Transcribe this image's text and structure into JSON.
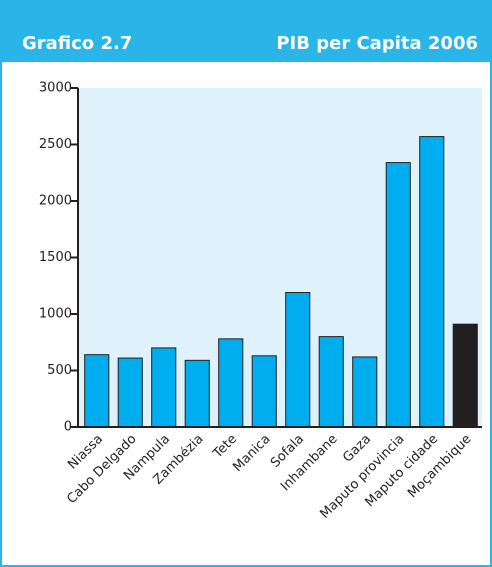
{
  "chart_data": {
    "type": "bar",
    "chart_id": "Grafico 2.7",
    "title": "PIB per Capita 2006",
    "categories": [
      "Niassa",
      "Cabo Delgado",
      "Nampula",
      "Zambézia",
      "Tete",
      "Manica",
      "Sofala",
      "Inhambane",
      "Gaza",
      "Maputo provincia",
      "Maputo cidade",
      "Moçambique"
    ],
    "values": [
      640,
      610,
      700,
      590,
      780,
      630,
      1190,
      800,
      620,
      2340,
      2570,
      910
    ],
    "colors": [
      "#00aeef",
      "#00aeef",
      "#00aeef",
      "#00aeef",
      "#00aeef",
      "#00aeef",
      "#00aeef",
      "#00aeef",
      "#00aeef",
      "#00aeef",
      "#00aeef",
      "#231f20"
    ],
    "ylim": [
      0,
      3000
    ],
    "yticks": [
      0,
      500,
      1000,
      1500,
      2000,
      2500,
      3000
    ],
    "grid": false
  }
}
